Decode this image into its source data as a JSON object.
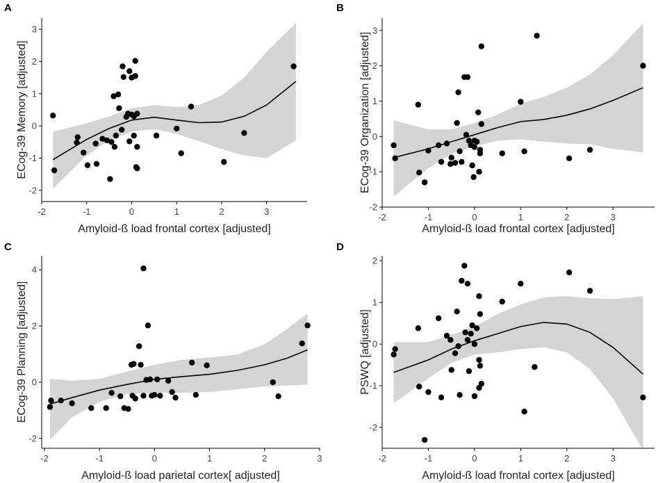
{
  "chart_data": [
    {
      "panel": "A",
      "type": "scatter",
      "xlabel": "Amyloid-ß load frontal cortex [adjusted]",
      "ylabel": "ECog-39 Memory [adjusted]",
      "xlim": [
        -2.0,
        3.9
      ],
      "ylim": [
        -2.35,
        3.35
      ],
      "xticks": [
        -2,
        -1,
        0,
        1,
        2,
        3
      ],
      "yticks": [
        -2,
        -1,
        0,
        1,
        2,
        3
      ],
      "points": [
        [
          -1.75,
          0.32
        ],
        [
          -1.72,
          -1.38
        ],
        [
          -1.2,
          -0.35
        ],
        [
          -1.22,
          -0.52
        ],
        [
          -1.07,
          -0.83
        ],
        [
          -0.98,
          -1.22
        ],
        [
          -0.78,
          -1.18
        ],
        [
          -0.8,
          -0.55
        ],
        [
          -0.65,
          -0.4
        ],
        [
          -0.55,
          -0.45
        ],
        [
          -0.48,
          -1.65
        ],
        [
          -0.45,
          -0.5
        ],
        [
          -0.38,
          -0.65
        ],
        [
          -0.4,
          0.92
        ],
        [
          -0.35,
          -0.3
        ],
        [
          -0.3,
          0.98
        ],
        [
          -0.28,
          0.55
        ],
        [
          -0.22,
          -0.12
        ],
        [
          -0.2,
          1.85
        ],
        [
          -0.18,
          1.52
        ],
        [
          -0.12,
          0.28
        ],
        [
          -0.08,
          0.38
        ],
        [
          -0.05,
          1.7
        ],
        [
          -0.05,
          -0.48
        ],
        [
          0.0,
          1.5
        ],
        [
          0.0,
          0.35
        ],
        [
          0.05,
          0.3
        ],
        [
          0.08,
          2.02
        ],
        [
          0.08,
          1.55
        ],
        [
          0.1,
          -1.28
        ],
        [
          0.12,
          -1.32
        ],
        [
          0.12,
          -0.65
        ],
        [
          0.12,
          0.38
        ],
        [
          0.05,
          -0.3
        ],
        [
          0.55,
          -0.3
        ],
        [
          1.0,
          -0.08
        ],
        [
          1.1,
          -0.85
        ],
        [
          1.32,
          0.6
        ],
        [
          2.05,
          -1.12
        ],
        [
          2.5,
          -0.22
        ],
        [
          3.6,
          1.85
        ]
      ],
      "fit": [
        [
          -1.75,
          -1.05
        ],
        [
          -1.0,
          -0.42
        ],
        [
          -0.5,
          -0.08
        ],
        [
          0.0,
          0.18
        ],
        [
          0.5,
          0.27
        ],
        [
          1.0,
          0.18
        ],
        [
          1.5,
          0.1
        ],
        [
          2.0,
          0.12
        ],
        [
          2.5,
          0.3
        ],
        [
          3.0,
          0.65
        ],
        [
          3.65,
          1.38
        ]
      ],
      "band_upper": [
        [
          -1.75,
          -0.18
        ],
        [
          -1.0,
          0.08
        ],
        [
          -0.5,
          0.3
        ],
        [
          0.0,
          0.55
        ],
        [
          0.5,
          0.65
        ],
        [
          1.0,
          0.58
        ],
        [
          1.5,
          0.65
        ],
        [
          2.0,
          0.95
        ],
        [
          2.5,
          1.5
        ],
        [
          3.0,
          2.3
        ],
        [
          3.65,
          3.2
        ]
      ],
      "band_lower": [
        [
          -1.75,
          -1.95
        ],
        [
          -1.0,
          -0.92
        ],
        [
          -0.5,
          -0.45
        ],
        [
          0.0,
          -0.18
        ],
        [
          0.5,
          -0.1
        ],
        [
          1.0,
          -0.25
        ],
        [
          1.5,
          -0.48
        ],
        [
          2.0,
          -0.72
        ],
        [
          2.5,
          -0.92
        ],
        [
          3.0,
          -1.0
        ],
        [
          3.65,
          -0.45
        ]
      ]
    },
    {
      "panel": "B",
      "type": "scatter",
      "xlabel": "Amyloid-ß load frontal cortex [adjusted]",
      "ylabel": "ECog-39 Organization [adjusted]",
      "xlim": [
        -2.0,
        3.9
      ],
      "ylim": [
        -2.0,
        3.35
      ],
      "xticks": [
        -2,
        -1,
        0,
        1,
        2,
        3
      ],
      "yticks": [
        -2,
        -1,
        0,
        1,
        2,
        3
      ],
      "points": [
        [
          -1.75,
          -0.25
        ],
        [
          -1.72,
          -0.62
        ],
        [
          -1.22,
          0.9
        ],
        [
          -1.2,
          -1.02
        ],
        [
          -1.08,
          -1.3
        ],
        [
          -1.0,
          -0.4
        ],
        [
          -0.78,
          -0.25
        ],
        [
          -0.72,
          -0.72
        ],
        [
          -0.6,
          -0.2
        ],
        [
          -0.52,
          -0.78
        ],
        [
          -0.5,
          -0.6
        ],
        [
          -0.42,
          -0.75
        ],
        [
          -0.38,
          0.38
        ],
        [
          -0.35,
          1.25
        ],
        [
          -0.32,
          -0.42
        ],
        [
          -0.28,
          -0.72
        ],
        [
          -0.22,
          1.68
        ],
        [
          -0.18,
          0.05
        ],
        [
          -0.15,
          1.68
        ],
        [
          -0.12,
          -0.12
        ],
        [
          -0.08,
          -0.25
        ],
        [
          0.0,
          -0.12
        ],
        [
          0.0,
          -0.3
        ],
        [
          -0.02,
          -1.15
        ],
        [
          -0.05,
          -0.82
        ],
        [
          0.05,
          -0.15
        ],
        [
          0.08,
          0.68
        ],
        [
          0.1,
          -1.0
        ],
        [
          0.12,
          -0.48
        ],
        [
          0.12,
          -0.38
        ],
        [
          0.15,
          0.35
        ],
        [
          0.15,
          2.55
        ],
        [
          0.6,
          -0.48
        ],
        [
          1.0,
          0.98
        ],
        [
          1.08,
          -0.42
        ],
        [
          1.35,
          2.85
        ],
        [
          2.05,
          -0.62
        ],
        [
          2.5,
          -0.38
        ],
        [
          3.65,
          2.0
        ]
      ],
      "fit": [
        [
          -1.75,
          -0.6
        ],
        [
          -1.0,
          -0.35
        ],
        [
          -0.5,
          -0.15
        ],
        [
          0.0,
          0.05
        ],
        [
          0.5,
          0.25
        ],
        [
          1.0,
          0.42
        ],
        [
          1.5,
          0.48
        ],
        [
          2.0,
          0.6
        ],
        [
          2.5,
          0.78
        ],
        [
          3.0,
          1.02
        ],
        [
          3.65,
          1.38
        ]
      ],
      "band_upper": [
        [
          -1.75,
          0.45
        ],
        [
          -1.0,
          0.2
        ],
        [
          -0.5,
          0.2
        ],
        [
          0.0,
          0.38
        ],
        [
          0.5,
          0.62
        ],
        [
          1.0,
          0.92
        ],
        [
          1.5,
          1.12
        ],
        [
          2.0,
          1.38
        ],
        [
          2.5,
          1.75
        ],
        [
          3.0,
          2.3
        ],
        [
          3.65,
          3.2
        ]
      ],
      "band_lower": [
        [
          -1.75,
          -1.7
        ],
        [
          -1.0,
          -0.9
        ],
        [
          -0.5,
          -0.5
        ],
        [
          0.0,
          -0.28
        ],
        [
          0.5,
          -0.12
        ],
        [
          1.0,
          -0.08
        ],
        [
          1.5,
          -0.15
        ],
        [
          2.0,
          -0.2
        ],
        [
          2.5,
          -0.22
        ],
        [
          3.0,
          -0.35
        ],
        [
          3.65,
          -0.45
        ]
      ]
    },
    {
      "panel": "C",
      "type": "scatter",
      "xlabel": "Amyloid-ß load parietal cortex[ adjusted]",
      "ylabel": "ECog-39 Planning [adjusted]",
      "xlim": [
        -2.05,
        3.0
      ],
      "ylim": [
        -2.35,
        4.5
      ],
      "xticks": [
        -2,
        -1,
        0,
        1,
        2,
        3
      ],
      "yticks": [
        -2,
        0,
        2,
        4
      ],
      "points": [
        [
          -1.9,
          -0.88
        ],
        [
          -1.88,
          -0.65
        ],
        [
          -1.7,
          -0.65
        ],
        [
          -1.5,
          -0.75
        ],
        [
          -1.15,
          -0.92
        ],
        [
          -0.88,
          -0.92
        ],
        [
          -0.78,
          -0.38
        ],
        [
          -0.62,
          -0.5
        ],
        [
          -0.55,
          -0.92
        ],
        [
          -0.48,
          -0.95
        ],
        [
          -0.42,
          0.62
        ],
        [
          -0.4,
          -0.48
        ],
        [
          -0.38,
          0.65
        ],
        [
          -0.35,
          -0.58
        ],
        [
          -0.28,
          1.28
        ],
        [
          -0.25,
          0.62
        ],
        [
          -0.2,
          4.05
        ],
        [
          -0.2,
          -0.48
        ],
        [
          -0.15,
          0.08
        ],
        [
          -0.12,
          2.02
        ],
        [
          -0.08,
          0.1
        ],
        [
          -0.05,
          -0.48
        ],
        [
          0.0,
          -0.45
        ],
        [
          0.05,
          0.1
        ],
        [
          0.1,
          -0.48
        ],
        [
          0.25,
          0.05
        ],
        [
          0.32,
          -0.35
        ],
        [
          0.38,
          -0.55
        ],
        [
          0.68,
          0.7
        ],
        [
          0.75,
          -0.45
        ],
        [
          0.95,
          0.6
        ],
        [
          2.15,
          0.0
        ],
        [
          2.25,
          -0.5
        ],
        [
          2.68,
          1.38
        ],
        [
          2.78,
          2.02
        ]
      ],
      "fit": [
        [
          -1.9,
          -0.78
        ],
        [
          -1.5,
          -0.55
        ],
        [
          -1.0,
          -0.28
        ],
        [
          -0.5,
          -0.08
        ],
        [
          0.0,
          0.1
        ],
        [
          0.5,
          0.2
        ],
        [
          1.0,
          0.28
        ],
        [
          1.5,
          0.42
        ],
        [
          2.0,
          0.62
        ],
        [
          2.4,
          0.85
        ],
        [
          2.78,
          1.15
        ]
      ],
      "band_upper": [
        [
          -1.9,
          0.12
        ],
        [
          -1.5,
          0.05
        ],
        [
          -1.0,
          0.12
        ],
        [
          -0.5,
          0.38
        ],
        [
          0.0,
          0.62
        ],
        [
          0.5,
          0.8
        ],
        [
          1.0,
          0.88
        ],
        [
          1.5,
          0.98
        ],
        [
          2.0,
          1.35
        ],
        [
          2.4,
          1.88
        ],
        [
          2.78,
          2.45
        ]
      ],
      "band_lower": [
        [
          -1.9,
          -2.05
        ],
        [
          -1.5,
          -1.25
        ],
        [
          -1.0,
          -0.7
        ],
        [
          -0.5,
          -0.42
        ],
        [
          0.0,
          -0.38
        ],
        [
          0.5,
          -0.38
        ],
        [
          1.0,
          -0.35
        ],
        [
          1.5,
          -0.25
        ],
        [
          2.0,
          -0.15
        ],
        [
          2.4,
          -0.12
        ],
        [
          2.78,
          -0.08
        ]
      ]
    },
    {
      "panel": "D",
      "type": "scatter",
      "xlabel": "Amyloid-ß load frontal cortex [adjusted]",
      "ylabel": "PSWQ [adjusted]",
      "xlim": [
        -2.0,
        3.9
      ],
      "ylim": [
        -2.5,
        2.12
      ],
      "xticks": [
        -2,
        -1,
        0,
        1,
        2,
        3
      ],
      "yticks": [
        -2,
        -1,
        0,
        1,
        2
      ],
      "points": [
        [
          -1.75,
          -0.25
        ],
        [
          -1.72,
          -0.12
        ],
        [
          -1.22,
          0.38
        ],
        [
          -1.2,
          -1.02
        ],
        [
          -1.08,
          -2.3
        ],
        [
          -1.0,
          -1.15
        ],
        [
          -0.78,
          0.62
        ],
        [
          -0.72,
          -1.28
        ],
        [
          -0.6,
          0.2
        ],
        [
          -0.52,
          0.1
        ],
        [
          -0.5,
          -0.62
        ],
        [
          -0.42,
          -0.22
        ],
        [
          -0.38,
          0.78
        ],
        [
          -0.35,
          -0.05
        ],
        [
          -0.32,
          -1.22
        ],
        [
          -0.28,
          1.52
        ],
        [
          -0.22,
          1.88
        ],
        [
          -0.2,
          0.28
        ],
        [
          -0.15,
          1.45
        ],
        [
          -0.15,
          0.1
        ],
        [
          -0.12,
          -0.65
        ],
        [
          -0.08,
          0.25
        ],
        [
          -0.05,
          0.45
        ],
        [
          0.0,
          -1.25
        ],
        [
          0.0,
          0.0
        ],
        [
          0.05,
          0.38
        ],
        [
          0.1,
          1.15
        ],
        [
          0.1,
          -0.38
        ],
        [
          0.12,
          -0.52
        ],
        [
          0.12,
          0.72
        ],
        [
          0.15,
          -0.95
        ],
        [
          0.1,
          -1.05
        ],
        [
          0.6,
          1.02
        ],
        [
          1.0,
          1.45
        ],
        [
          1.08,
          -1.62
        ],
        [
          1.3,
          -0.55
        ],
        [
          2.05,
          1.72
        ],
        [
          2.5,
          1.28
        ],
        [
          3.65,
          -1.28
        ]
      ],
      "fit": [
        [
          -1.75,
          -0.68
        ],
        [
          -1.0,
          -0.38
        ],
        [
          -0.5,
          -0.12
        ],
        [
          0.0,
          0.08
        ],
        [
          0.5,
          0.25
        ],
        [
          1.0,
          0.42
        ],
        [
          1.5,
          0.52
        ],
        [
          2.0,
          0.48
        ],
        [
          2.5,
          0.28
        ],
        [
          3.0,
          -0.08
        ],
        [
          3.65,
          -0.72
        ]
      ],
      "band_upper": [
        [
          -1.75,
          0.05
        ],
        [
          -1.0,
          0.05
        ],
        [
          -0.5,
          0.22
        ],
        [
          0.0,
          0.42
        ],
        [
          0.5,
          0.72
        ],
        [
          1.0,
          0.95
        ],
        [
          1.5,
          1.12
        ],
        [
          2.0,
          1.15
        ],
        [
          2.5,
          1.1
        ],
        [
          3.0,
          1.08
        ],
        [
          3.65,
          1.15
        ]
      ],
      "band_lower": [
        [
          -1.75,
          -1.42
        ],
        [
          -1.0,
          -0.82
        ],
        [
          -0.5,
          -0.45
        ],
        [
          0.0,
          -0.25
        ],
        [
          0.5,
          -0.2
        ],
        [
          1.0,
          -0.12
        ],
        [
          1.5,
          -0.08
        ],
        [
          2.0,
          -0.2
        ],
        [
          2.5,
          -0.6
        ],
        [
          3.0,
          -1.3
        ],
        [
          3.65,
          -2.55
        ]
      ]
    }
  ]
}
